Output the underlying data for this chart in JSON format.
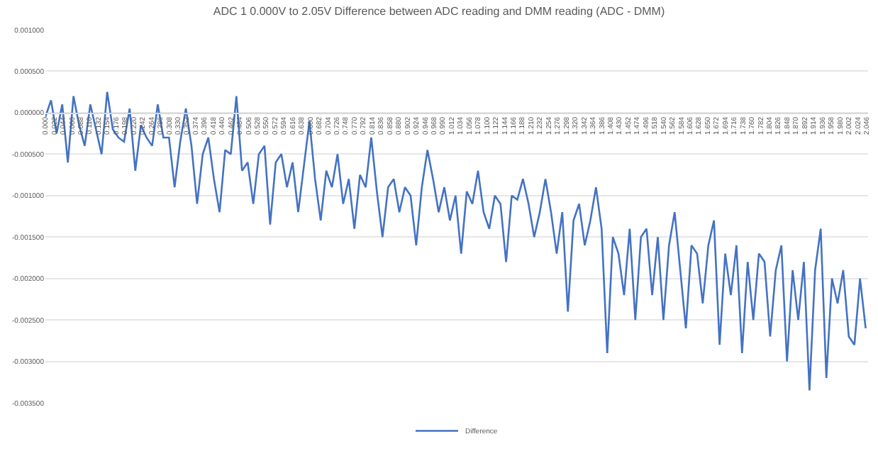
{
  "chart_data": {
    "type": "line",
    "title": "ADC 1 0.000V to 2.05V Difference between ADC reading and DMM reading (ADC - DMM)",
    "x": [
      0,
      0.014,
      0.028,
      0.042,
      0.056,
      0.07,
      0.084,
      0.098,
      0.112,
      0.126,
      0.14,
      0.154,
      0.168,
      0.182,
      0.196,
      0.21,
      0.224,
      0.238,
      0.252,
      0.266,
      0.28,
      0.294,
      0.308,
      0.322,
      0.336,
      0.35,
      0.364,
      0.378,
      0.392,
      0.406,
      0.42,
      0.434,
      0.448,
      0.462,
      0.476,
      0.49,
      0.504,
      0.518,
      0.532,
      0.546,
      0.56,
      0.574,
      0.588,
      0.602,
      0.616,
      0.63,
      0.644,
      0.658,
      0.672,
      0.686,
      0.7,
      0.714,
      0.728,
      0.742,
      0.756,
      0.77,
      0.784,
      0.798,
      0.812,
      0.826,
      0.84,
      0.854,
      0.868,
      0.882,
      0.896,
      0.91,
      0.924,
      0.938,
      0.952,
      0.966,
      0.98,
      0.994,
      1.008,
      1.022,
      1.036,
      1.05,
      1.064,
      1.078,
      1.092,
      1.106,
      1.12,
      1.134,
      1.148,
      1.162,
      1.176,
      1.19,
      1.204,
      1.218,
      1.232,
      1.246,
      1.26,
      1.274,
      1.288,
      1.302,
      1.316,
      1.33,
      1.344,
      1.358,
      1.372,
      1.386,
      1.4,
      1.414,
      1.428,
      1.442,
      1.456,
      1.47,
      1.484,
      1.498,
      1.512,
      1.526,
      1.54,
      1.554,
      1.568,
      1.582,
      1.596,
      1.61,
      1.624,
      1.638,
      1.652,
      1.666,
      1.68,
      1.694,
      1.708,
      1.722,
      1.736,
      1.75,
      1.764,
      1.778,
      1.792,
      1.806,
      1.82,
      1.834,
      1.848,
      1.862,
      1.876,
      1.89,
      1.904,
      1.918,
      1.932,
      1.946,
      1.96,
      1.974,
      1.988,
      2.002,
      2.016,
      2.03,
      2.044
    ],
    "series": [
      {
        "name": "Difference",
        "color": "#4472c4",
        "values": [
          -5e-05,
          0.00015,
          -0.00025,
          0.0001,
          -0.0006,
          0.0002,
          -0.00015,
          -0.0004,
          0.0001,
          -0.0002,
          -0.0005,
          0.00025,
          -0.0002,
          -0.0003,
          -0.00035,
          5e-05,
          -0.0007,
          -0.00015,
          -0.0003,
          -0.0004,
          0.0001,
          -0.0003,
          -0.0003,
          -0.0009,
          -0.00035,
          5e-05,
          -0.0004,
          -0.0011,
          -0.0005,
          -0.0003,
          -0.0008,
          -0.0012,
          -0.00045,
          -0.0005,
          0.0002,
          -0.0007,
          -0.0006,
          -0.0011,
          -0.0005,
          -0.0004,
          -0.00135,
          -0.0006,
          -0.0005,
          -0.0009,
          -0.0006,
          -0.0012,
          -0.00065,
          -0.0001,
          -0.0008,
          -0.0013,
          -0.0007,
          -0.0009,
          -0.0005,
          -0.0011,
          -0.0008,
          -0.0014,
          -0.00075,
          -0.0009,
          -0.0003,
          -0.00095,
          -0.0015,
          -0.0009,
          -0.0008,
          -0.0012,
          -0.0009,
          -0.001,
          -0.0016,
          -0.0009,
          -0.00045,
          -0.0008,
          -0.0012,
          -0.0009,
          -0.0013,
          -0.001,
          -0.0017,
          -0.00095,
          -0.0011,
          -0.0007,
          -0.0012,
          -0.0014,
          -0.001,
          -0.0011,
          -0.0018,
          -0.001,
          -0.00105,
          -0.0008,
          -0.0011,
          -0.0015,
          -0.0012,
          -0.0008,
          -0.0012,
          -0.0017,
          -0.0012,
          -0.0024,
          -0.0013,
          -0.0011,
          -0.0016,
          -0.0013,
          -0.0009,
          -0.0014,
          -0.0029,
          -0.0015,
          -0.0017,
          -0.0022,
          -0.0014,
          -0.0025,
          -0.0015,
          -0.0014,
          -0.0022,
          -0.0015,
          -0.0025,
          -0.0016,
          -0.0012,
          -0.0019,
          -0.0026,
          -0.0016,
          -0.0017,
          -0.0023,
          -0.0016,
          -0.0013,
          -0.0028,
          -0.0017,
          -0.0022,
          -0.0016,
          -0.0029,
          -0.0018,
          -0.0025,
          -0.0017,
          -0.0018,
          -0.0027,
          -0.0019,
          -0.0016,
          -0.003,
          -0.0019,
          -0.0025,
          -0.0018,
          -0.00335,
          -0.0019,
          -0.0014,
          -0.0032,
          -0.002,
          -0.0023,
          -0.0019,
          -0.0027,
          -0.0028,
          -0.002,
          -0.0026
        ]
      }
    ],
    "xlim": [
      0,
      2.05
    ],
    "xticks": [
      {
        "value": 0,
        "label": "0.000"
      },
      {
        "value": 0.022,
        "label": "0.022"
      },
      {
        "value": 0.044,
        "label": "0.044"
      },
      {
        "value": 0.066,
        "label": "0.066"
      },
      {
        "value": 0.088,
        "label": "0.088"
      },
      {
        "value": 0.11,
        "label": "0.110"
      },
      {
        "value": 0.132,
        "label": "0.132"
      },
      {
        "value": 0.154,
        "label": "0.154"
      },
      {
        "value": 0.176,
        "label": "0.176"
      },
      {
        "value": 0.198,
        "label": "0.198"
      },
      {
        "value": 0.22,
        "label": "0.220"
      },
      {
        "value": 0.242,
        "label": "0.242"
      },
      {
        "value": 0.264,
        "label": "0.264"
      },
      {
        "value": 0.286,
        "label": "0.286"
      },
      {
        "value": 0.308,
        "label": "0.308"
      },
      {
        "value": 0.33,
        "label": "0.330"
      },
      {
        "value": 0.352,
        "label": "0.352"
      },
      {
        "value": 0.374,
        "label": "0.374"
      },
      {
        "value": 0.396,
        "label": "0.396"
      },
      {
        "value": 0.418,
        "label": "0.418"
      },
      {
        "value": 0.44,
        "label": "0.440"
      },
      {
        "value": 0.462,
        "label": "0.462"
      },
      {
        "value": 0.484,
        "label": "0.484"
      },
      {
        "value": 0.506,
        "label": "0.506"
      },
      {
        "value": 0.528,
        "label": "0.528"
      },
      {
        "value": 0.55,
        "label": "0.550"
      },
      {
        "value": 0.572,
        "label": "0.572"
      },
      {
        "value": 0.594,
        "label": "0.594"
      },
      {
        "value": 0.616,
        "label": "0.616"
      },
      {
        "value": 0.638,
        "label": "0.638"
      },
      {
        "value": 0.66,
        "label": "0.660"
      },
      {
        "value": 0.682,
        "label": "0.682"
      },
      {
        "value": 0.704,
        "label": "0.704"
      },
      {
        "value": 0.726,
        "label": "0.726"
      },
      {
        "value": 0.748,
        "label": "0.748"
      },
      {
        "value": 0.77,
        "label": "0.770"
      },
      {
        "value": 0.792,
        "label": "0.792"
      },
      {
        "value": 0.814,
        "label": "0.814"
      },
      {
        "value": 0.836,
        "label": "0.836"
      },
      {
        "value": 0.858,
        "label": "0.858"
      },
      {
        "value": 0.88,
        "label": "0.880"
      },
      {
        "value": 0.902,
        "label": "0.902"
      },
      {
        "value": 0.924,
        "label": "0.924"
      },
      {
        "value": 0.946,
        "label": "0.946"
      },
      {
        "value": 0.968,
        "label": "0.968"
      },
      {
        "value": 0.99,
        "label": "0.990"
      },
      {
        "value": 1.012,
        "label": "1.012"
      },
      {
        "value": 1.034,
        "label": "1.034"
      },
      {
        "value": 1.056,
        "label": "1.056"
      },
      {
        "value": 1.078,
        "label": "1.078"
      },
      {
        "value": 1.1,
        "label": "1.100"
      },
      {
        "value": 1.122,
        "label": "1.122"
      },
      {
        "value": 1.144,
        "label": "1.144"
      },
      {
        "value": 1.166,
        "label": "1.166"
      },
      {
        "value": 1.188,
        "label": "1.188"
      },
      {
        "value": 1.21,
        "label": "1.210"
      },
      {
        "value": 1.232,
        "label": "1.232"
      },
      {
        "value": 1.254,
        "label": "1.254"
      },
      {
        "value": 1.276,
        "label": "1.276"
      },
      {
        "value": 1.298,
        "label": "1.298"
      },
      {
        "value": 1.32,
        "label": "1.320"
      },
      {
        "value": 1.342,
        "label": "1.342"
      },
      {
        "value": 1.364,
        "label": "1.364"
      },
      {
        "value": 1.386,
        "label": "1.386"
      },
      {
        "value": 1.408,
        "label": "1.408"
      },
      {
        "value": 1.43,
        "label": "1.430"
      },
      {
        "value": 1.452,
        "label": "1.452"
      },
      {
        "value": 1.474,
        "label": "1.474"
      },
      {
        "value": 1.496,
        "label": "1.496"
      },
      {
        "value": 1.518,
        "label": "1.518"
      },
      {
        "value": 1.54,
        "label": "1.540"
      },
      {
        "value": 1.562,
        "label": "1.562"
      },
      {
        "value": 1.584,
        "label": "1.584"
      },
      {
        "value": 1.606,
        "label": "1.606"
      },
      {
        "value": 1.628,
        "label": "1.628"
      },
      {
        "value": 1.65,
        "label": "1.650"
      },
      {
        "value": 1.672,
        "label": "1.672"
      },
      {
        "value": 1.694,
        "label": "1.694"
      },
      {
        "value": 1.716,
        "label": "1.716"
      },
      {
        "value": 1.738,
        "label": "1.738"
      },
      {
        "value": 1.76,
        "label": "1.760"
      },
      {
        "value": 1.782,
        "label": "1.782"
      },
      {
        "value": 1.804,
        "label": "1.804"
      },
      {
        "value": 1.826,
        "label": "1.826"
      },
      {
        "value": 1.848,
        "label": "1.848"
      },
      {
        "value": 1.87,
        "label": "1.870"
      },
      {
        "value": 1.892,
        "label": "1.892"
      },
      {
        "value": 1.914,
        "label": "1.914"
      },
      {
        "value": 1.936,
        "label": "1.936"
      },
      {
        "value": 1.958,
        "label": "1.958"
      },
      {
        "value": 1.98,
        "label": "1.980"
      },
      {
        "value": 2.002,
        "label": "2.002"
      },
      {
        "value": 2.024,
        "label": "2.024"
      },
      {
        "value": 2.046,
        "label": "2.046"
      }
    ],
    "ylim": [
      -0.0035,
      0.001
    ],
    "yticks": [
      {
        "value": 0.001,
        "label": "0.001000"
      },
      {
        "value": 0.0005,
        "label": "0.000500"
      },
      {
        "value": 0,
        "label": "0.000000"
      },
      {
        "value": -0.0005,
        "label": "-0.000500"
      },
      {
        "value": -0.001,
        "label": "-0.001000"
      },
      {
        "value": -0.0015,
        "label": "-0.001500"
      },
      {
        "value": -0.002,
        "label": "-0.002000"
      },
      {
        "value": -0.0025,
        "label": "-0.002500"
      },
      {
        "value": -0.003,
        "label": "-0.003000"
      },
      {
        "value": -0.0035,
        "label": "-0.003500"
      }
    ],
    "grid": "y",
    "legend": "bottom",
    "marker": "none",
    "line_style": "solid"
  }
}
